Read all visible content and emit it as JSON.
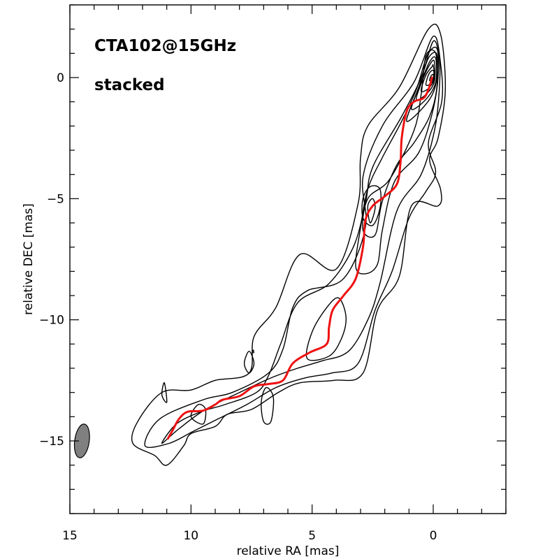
{
  "chart_data": {
    "type": "contour",
    "title": "CTA102@15GHz",
    "subtitle": "stacked",
    "xlabel": "relative RA [mas]",
    "ylabel": "relative DEC [mas]",
    "xlim": [
      15,
      -3
    ],
    "ylim": [
      -18,
      3
    ],
    "xticks": [
      15,
      10,
      5,
      0
    ],
    "xtick_labels": [
      "15",
      "10",
      "5",
      "0"
    ],
    "yticks": [
      0,
      -5,
      -10,
      -15
    ],
    "ytick_labels": [
      "0",
      "−5",
      "−10",
      "−15"
    ],
    "colors": {
      "contours": "#000000",
      "ridge_line": "#ee1111",
      "beam": "#808080"
    },
    "beam": {
      "x": 14.5,
      "y": -15.0,
      "major_mas": 1.4,
      "minor_mas": 0.6,
      "pa_deg": -8
    },
    "ridge_line": {
      "name": "jet ridge line",
      "points": [
        [
          0.05,
          0.0
        ],
        [
          0.2,
          -0.5
        ],
        [
          0.4,
          -0.85
        ],
        [
          0.8,
          -1.0
        ],
        [
          1.1,
          -1.4
        ],
        [
          1.3,
          -2.5
        ],
        [
          1.35,
          -3.5
        ],
        [
          1.5,
          -4.4
        ],
        [
          2.0,
          -4.9
        ],
        [
          2.5,
          -5.3
        ],
        [
          2.8,
          -5.9
        ],
        [
          2.9,
          -7.0
        ],
        [
          3.2,
          -8.3
        ],
        [
          3.7,
          -9.0
        ],
        [
          4.15,
          -9.6
        ],
        [
          4.3,
          -10.3
        ],
        [
          4.4,
          -11.0
        ],
        [
          5.1,
          -11.35
        ],
        [
          5.8,
          -11.8
        ],
        [
          6.2,
          -12.5
        ],
        [
          6.8,
          -12.65
        ],
        [
          7.4,
          -12.75
        ],
        [
          8.0,
          -13.15
        ],
        [
          8.7,
          -13.3
        ],
        [
          9.0,
          -13.5
        ],
        [
          9.5,
          -13.75
        ],
        [
          10.15,
          -13.8
        ],
        [
          10.5,
          -14.1
        ],
        [
          10.75,
          -14.55
        ],
        [
          10.95,
          -14.9
        ]
      ]
    },
    "contours": [
      {
        "level": 1,
        "points": [
          [
            12.4,
            -15.1
          ],
          [
            12.2,
            -14.2
          ],
          [
            11.2,
            -13.0
          ],
          [
            10.0,
            -12.9
          ],
          [
            9.0,
            -12.5
          ],
          [
            7.6,
            -12.2
          ],
          [
            7.4,
            -10.7
          ],
          [
            6.5,
            -9.5
          ],
          [
            5.5,
            -7.3
          ],
          [
            4.0,
            -7.9
          ],
          [
            3.1,
            -5.2
          ],
          [
            3.0,
            -3.3
          ],
          [
            2.7,
            -2.0
          ],
          [
            1.4,
            -0.4
          ],
          [
            0.2,
            2.0
          ],
          [
            -0.3,
            1.8
          ],
          [
            -0.5,
            -0.5
          ],
          [
            -0.2,
            -2.5
          ],
          [
            0.15,
            -3.4
          ],
          [
            -0.3,
            -4.6
          ],
          [
            -0.2,
            -5.3
          ],
          [
            0.9,
            -5.3
          ],
          [
            1.4,
            -8.2
          ],
          [
            2.3,
            -9.6
          ],
          [
            2.9,
            -12.2
          ],
          [
            4.1,
            -12.5
          ],
          [
            5.5,
            -12.6
          ],
          [
            6.4,
            -13.0
          ],
          [
            7.5,
            -13.7
          ],
          [
            8.5,
            -13.9
          ],
          [
            9.0,
            -14.4
          ],
          [
            10.0,
            -14.7
          ],
          [
            10.3,
            -15.2
          ],
          [
            11.0,
            -16.0
          ],
          [
            11.5,
            -15.6
          ],
          [
            12.4,
            -15.1
          ]
        ]
      },
      {
        "level": 2,
        "points": [
          [
            11.9,
            -15.2
          ],
          [
            11.3,
            -14.1
          ],
          [
            9.5,
            -13.3
          ],
          [
            8.3,
            -13.0
          ],
          [
            6.8,
            -12.2
          ],
          [
            6.2,
            -11.2
          ],
          [
            5.8,
            -9.5
          ],
          [
            5.2,
            -8.8
          ],
          [
            3.7,
            -8.3
          ],
          [
            2.8,
            -6.2
          ],
          [
            2.9,
            -4.1
          ],
          [
            2.1,
            -2.0
          ],
          [
            0.8,
            -0.2
          ],
          [
            0.0,
            1.7
          ],
          [
            -0.3,
            0.6
          ],
          [
            -0.35,
            -1.0
          ],
          [
            0.2,
            -2.7
          ],
          [
            -0.1,
            -3.9
          ],
          [
            0.3,
            -4.7
          ],
          [
            1.0,
            -5.8
          ],
          [
            1.7,
            -8.0
          ],
          [
            2.4,
            -9.6
          ],
          [
            3.1,
            -11.8
          ],
          [
            4.2,
            -12.2
          ],
          [
            5.3,
            -12.4
          ],
          [
            6.5,
            -12.8
          ],
          [
            7.7,
            -13.5
          ],
          [
            8.9,
            -14.1
          ],
          [
            9.9,
            -14.6
          ],
          [
            10.9,
            -15.1
          ],
          [
            11.9,
            -15.2
          ]
        ]
      },
      {
        "level": 3,
        "points": [
          [
            11.2,
            -15.1
          ],
          [
            10.6,
            -14.3
          ],
          [
            9.6,
            -13.8
          ],
          [
            8.6,
            -13.5
          ],
          [
            7.3,
            -13.0
          ],
          [
            6.8,
            -12.3
          ],
          [
            6.3,
            -11.0
          ],
          [
            5.6,
            -9.3
          ],
          [
            4.3,
            -8.5
          ],
          [
            3.3,
            -7.0
          ],
          [
            2.8,
            -5.2
          ],
          [
            2.5,
            -3.7
          ],
          [
            1.3,
            -1.6
          ],
          [
            0.5,
            0.0
          ],
          [
            0.0,
            1.5
          ],
          [
            -0.25,
            0.8
          ],
          [
            -0.25,
            -0.5
          ],
          [
            -0.05,
            -2.2
          ],
          [
            0.5,
            -4.0
          ],
          [
            1.5,
            -5.5
          ],
          [
            2.2,
            -8.5
          ],
          [
            2.7,
            -10.0
          ],
          [
            3.5,
            -11.3
          ],
          [
            4.6,
            -11.7
          ],
          [
            5.6,
            -12.0
          ],
          [
            6.7,
            -12.4
          ],
          [
            8.0,
            -13.0
          ],
          [
            9.4,
            -13.7
          ],
          [
            10.5,
            -14.5
          ],
          [
            11.2,
            -15.1
          ]
        ]
      },
      {
        "level": 4,
        "points": [
          [
            5.2,
            -11.6
          ],
          [
            5.0,
            -10.5
          ],
          [
            4.4,
            -9.5
          ],
          [
            3.9,
            -9.1
          ],
          [
            3.6,
            -9.9
          ],
          [
            3.8,
            -10.8
          ],
          [
            4.3,
            -11.5
          ],
          [
            5.2,
            -11.6
          ]
        ]
      },
      {
        "level": 5,
        "points": [
          [
            3.2,
            -7.8
          ],
          [
            3.0,
            -6.2
          ],
          [
            2.7,
            -4.6
          ],
          [
            2.1,
            -3.3
          ],
          [
            1.3,
            -1.8
          ],
          [
            0.7,
            -0.5
          ],
          [
            0.25,
            0.9
          ],
          [
            -0.15,
            1.2
          ],
          [
            -0.2,
            0.0
          ],
          [
            0.05,
            -1.5
          ],
          [
            0.6,
            -3.1
          ],
          [
            1.6,
            -4.3
          ],
          [
            2.1,
            -6.3
          ],
          [
            2.3,
            -7.7
          ],
          [
            2.8,
            -8.1
          ],
          [
            3.2,
            -7.8
          ]
        ]
      },
      {
        "level": 6,
        "points": [
          [
            2.9,
            -6.3
          ],
          [
            2.7,
            -5.0
          ],
          [
            1.8,
            -4.2
          ],
          [
            0.8,
            -2.2
          ],
          [
            0.5,
            -0.7
          ],
          [
            0.3,
            0.9
          ],
          [
            -0.1,
            1.0
          ],
          [
            -0.15,
            -0.4
          ],
          [
            0.15,
            -1.6
          ],
          [
            0.8,
            -2.7
          ],
          [
            1.5,
            -3.6
          ],
          [
            2.1,
            -5.1
          ],
          [
            2.4,
            -6.5
          ],
          [
            2.9,
            -6.3
          ]
        ]
      },
      {
        "level": 7,
        "points": [
          [
            2.9,
            -5.8
          ],
          [
            2.9,
            -5.0
          ],
          [
            2.6,
            -4.5
          ],
          [
            2.2,
            -4.6
          ],
          [
            2.2,
            -5.4
          ],
          [
            2.5,
            -6.1
          ],
          [
            2.9,
            -5.8
          ]
        ]
      },
      {
        "level": 8,
        "points": [
          [
            2.6,
            -6.0
          ],
          [
            2.7,
            -5.3
          ],
          [
            2.5,
            -5.0
          ],
          [
            2.4,
            -5.4
          ],
          [
            2.6,
            -6.0
          ]
        ]
      },
      {
        "level": 9,
        "points": [
          [
            1.1,
            -1.8
          ],
          [
            0.6,
            -0.4
          ],
          [
            0.2,
            0.8
          ],
          [
            -0.15,
            0.95
          ],
          [
            -0.1,
            -0.3
          ],
          [
            0.3,
            -1.1
          ],
          [
            1.1,
            -1.8
          ]
        ]
      },
      {
        "level": 10,
        "points": [
          [
            0.9,
            -1.3
          ],
          [
            0.5,
            -0.2
          ],
          [
            0.15,
            0.65
          ],
          [
            -0.1,
            0.8
          ],
          [
            -0.1,
            -0.2
          ],
          [
            0.3,
            -0.9
          ],
          [
            0.9,
            -1.3
          ]
        ]
      },
      {
        "level": 11,
        "points": [
          [
            0.7,
            -0.9
          ],
          [
            0.4,
            0.0
          ],
          [
            0.1,
            0.6
          ],
          [
            -0.05,
            0.65
          ],
          [
            -0.05,
            -0.15
          ],
          [
            0.25,
            -0.65
          ],
          [
            0.7,
            -0.9
          ]
        ]
      },
      {
        "level": 12,
        "points": [
          [
            0.5,
            -0.55
          ],
          [
            0.3,
            0.1
          ],
          [
            0.05,
            0.45
          ],
          [
            0.0,
            0.5
          ],
          [
            -0.05,
            -0.05
          ],
          [
            0.2,
            -0.45
          ],
          [
            0.5,
            -0.55
          ]
        ]
      },
      {
        "level": 13,
        "points": [
          [
            0.3,
            -0.3
          ],
          [
            0.18,
            0.15
          ],
          [
            0.0,
            0.3
          ],
          [
            -0.02,
            0.0
          ],
          [
            0.1,
            -0.25
          ],
          [
            0.3,
            -0.3
          ]
        ]
      },
      {
        "level": 14,
        "points": [
          [
            0.15,
            -0.12
          ],
          [
            0.08,
            0.08
          ],
          [
            -0.0,
            0.12
          ],
          [
            -0.0,
            -0.05
          ],
          [
            0.15,
            -0.12
          ]
        ]
      },
      {
        "level": 15,
        "points": [
          [
            11.2,
            -13.1
          ],
          [
            11.1,
            -12.6
          ],
          [
            11.0,
            -13.4
          ],
          [
            11.2,
            -13.1
          ]
        ]
      },
      {
        "level": 16,
        "points": [
          [
            7.8,
            -11.8
          ],
          [
            7.6,
            -11.3
          ],
          [
            7.4,
            -11.8
          ],
          [
            7.6,
            -12.2
          ],
          [
            7.8,
            -11.8
          ]
        ]
      },
      {
        "level": 17,
        "points": [
          [
            7.1,
            -13.4
          ],
          [
            6.9,
            -12.8
          ],
          [
            6.6,
            -13.2
          ],
          [
            6.7,
            -14.2
          ],
          [
            7.0,
            -14.2
          ],
          [
            7.1,
            -13.4
          ]
        ]
      },
      {
        "level": 18,
        "points": [
          [
            10.0,
            -14.0
          ],
          [
            9.7,
            -13.5
          ],
          [
            9.4,
            -13.7
          ],
          [
            9.5,
            -14.3
          ],
          [
            10.0,
            -14.0
          ]
        ]
      },
      {
        "level": 19,
        "points": [
          [
            7.47,
            -11.35
          ],
          [
            7.43,
            -11.25
          ],
          [
            7.41,
            -11.35
          ],
          [
            7.47,
            -11.35
          ]
        ]
      }
    ]
  }
}
